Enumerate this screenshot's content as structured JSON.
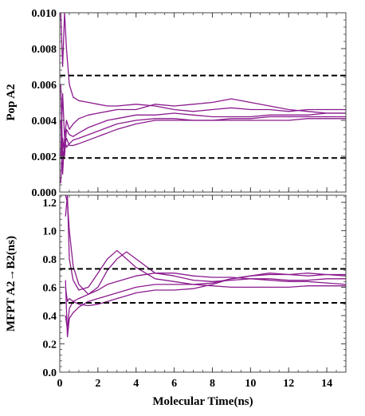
{
  "chart_data": [
    {
      "type": "line",
      "title": "",
      "ylabel": "Pop A2",
      "xlim": [
        0,
        15
      ],
      "ylim": [
        0,
        0.01
      ],
      "xticks": [
        "0",
        "2",
        "4",
        "6",
        "8",
        "10",
        "12",
        "14"
      ],
      "yticks": [
        "0.000",
        "0.002",
        "0.004",
        "0.006",
        "0.008",
        "0.010"
      ],
      "line_color": "#8B1A8E",
      "reference_lines": [
        0.0065,
        0.0019
      ],
      "series": [
        {
          "x": [
            0.05,
            0.15,
            0.25,
            0.35,
            0.5,
            0.7,
            1,
            1.5,
            2,
            2.5,
            3,
            4,
            5,
            6,
            7,
            8,
            9,
            10,
            11,
            12,
            13,
            14,
            15
          ],
          "y": [
            0.01,
            0.007,
            0.01,
            0.008,
            0.006,
            0.0053,
            0.0051,
            0.005,
            0.0049,
            0.0048,
            0.0048,
            0.0049,
            0.0048,
            0.0046,
            0.0045,
            0.0046,
            0.0047,
            0.0046,
            0.0046,
            0.0045,
            0.0046,
            0.0046,
            0.0046
          ]
        },
        {
          "x": [
            0.05,
            0.15,
            0.25,
            0.35,
            0.5,
            0.7,
            1,
            1.5,
            2,
            2.5,
            3,
            4,
            5,
            6,
            7,
            8,
            9,
            10,
            11,
            12,
            13,
            14,
            15
          ],
          "y": [
            0.002,
            0.0055,
            0.003,
            0.004,
            0.0035,
            0.0038,
            0.0041,
            0.0043,
            0.0044,
            0.0045,
            0.0046,
            0.0046,
            0.0049,
            0.0048,
            0.0049,
            0.005,
            0.0052,
            0.005,
            0.0048,
            0.0046,
            0.0045,
            0.0044,
            0.0044
          ]
        },
        {
          "x": [
            0.05,
            0.15,
            0.25,
            0.35,
            0.5,
            0.7,
            1,
            1.5,
            2,
            2.5,
            3,
            4,
            5,
            6,
            7,
            8,
            9,
            10,
            11,
            12,
            13,
            14,
            15
          ],
          "y": [
            0.0005,
            0.003,
            0.002,
            0.0035,
            0.0032,
            0.0031,
            0.0033,
            0.0036,
            0.0038,
            0.004,
            0.0041,
            0.0043,
            0.0043,
            0.0044,
            0.0043,
            0.0042,
            0.0042,
            0.0042,
            0.0043,
            0.0043,
            0.0043,
            0.0044,
            0.0044
          ]
        },
        {
          "x": [
            0.05,
            0.15,
            0.25,
            0.35,
            0.5,
            0.7,
            1,
            1.5,
            2,
            2.5,
            3,
            4,
            5,
            6,
            7,
            8,
            9,
            10,
            11,
            12,
            13,
            14,
            15
          ],
          "y": [
            0.004,
            0.001,
            0.003,
            0.0025,
            0.0027,
            0.0029,
            0.003,
            0.0032,
            0.0034,
            0.0036,
            0.0038,
            0.004,
            0.0041,
            0.0041,
            0.004,
            0.004,
            0.0041,
            0.0041,
            0.0042,
            0.0042,
            0.0042,
            0.0042,
            0.0042
          ]
        },
        {
          "x": [
            0.05,
            0.15,
            0.25,
            0.35,
            0.5,
            0.7,
            1,
            1.5,
            2,
            2.5,
            3,
            4,
            5,
            6,
            7,
            8,
            9,
            10,
            11,
            12,
            13,
            14,
            15
          ],
          "y": [
            0.006,
            0.002,
            0.0025,
            0.003,
            0.0026,
            0.0026,
            0.0027,
            0.0029,
            0.0031,
            0.0033,
            0.0035,
            0.0038,
            0.004,
            0.004,
            0.004,
            0.004,
            0.004,
            0.004,
            0.004,
            0.004,
            0.0041,
            0.0041,
            0.0041
          ]
        }
      ]
    },
    {
      "type": "line",
      "title": "",
      "xlabel": "Molecular Time(ns)",
      "ylabel": "MFPT A2→B2(ns)",
      "xlim": [
        0,
        15
      ],
      "ylim": [
        0,
        1.25
      ],
      "xticks": [
        "0",
        "2",
        "4",
        "6",
        "8",
        "10",
        "12",
        "14"
      ],
      "yticks": [
        "0.0",
        "0.2",
        "0.4",
        "0.6",
        "0.8",
        "1.0",
        "1.2"
      ],
      "line_color": "#8B1A8E",
      "reference_lines": [
        0.73,
        0.49
      ],
      "series": [
        {
          "x": [
            0.3,
            0.4,
            0.5,
            0.7,
            1,
            1.5,
            2,
            2.5,
            3,
            3.5,
            4,
            5,
            6,
            7,
            8,
            9,
            10,
            11,
            12,
            13,
            14,
            15
          ],
          "y": [
            1.25,
            1.2,
            1.0,
            0.75,
            0.62,
            0.55,
            0.6,
            0.72,
            0.8,
            0.85,
            0.8,
            0.7,
            0.68,
            0.65,
            0.64,
            0.65,
            0.66,
            0.66,
            0.65,
            0.65,
            0.66,
            0.66
          ]
        },
        {
          "x": [
            0.3,
            0.4,
            0.5,
            0.7,
            1,
            1.5,
            2,
            2.5,
            3,
            3.5,
            4,
            5,
            6,
            7,
            8,
            9,
            10,
            11,
            12,
            13,
            14,
            15
          ],
          "y": [
            1.1,
            1.25,
            0.8,
            0.65,
            0.58,
            0.6,
            0.7,
            0.8,
            0.86,
            0.8,
            0.74,
            0.66,
            0.64,
            0.62,
            0.63,
            0.66,
            0.68,
            0.69,
            0.69,
            0.7,
            0.69,
            0.68
          ]
        },
        {
          "x": [
            0.3,
            0.4,
            0.5,
            0.7,
            1,
            1.5,
            2,
            2.5,
            3,
            3.5,
            4,
            5,
            6,
            7,
            8,
            9,
            10,
            11,
            12,
            13,
            14,
            15
          ],
          "y": [
            0.4,
            0.3,
            0.45,
            0.5,
            0.52,
            0.55,
            0.58,
            0.62,
            0.64,
            0.66,
            0.68,
            0.7,
            0.7,
            0.68,
            0.67,
            0.67,
            0.66,
            0.65,
            0.64,
            0.64,
            0.63,
            0.62
          ]
        },
        {
          "x": [
            0.3,
            0.4,
            0.5,
            0.7,
            1,
            1.5,
            2,
            2.5,
            3,
            3.5,
            4,
            5,
            6,
            7,
            8,
            9,
            10,
            11,
            12,
            13,
            14,
            15
          ],
          "y": [
            0.65,
            0.25,
            0.38,
            0.42,
            0.46,
            0.5,
            0.52,
            0.54,
            0.56,
            0.58,
            0.6,
            0.62,
            0.62,
            0.62,
            0.61,
            0.6,
            0.6,
            0.6,
            0.6,
            0.61,
            0.61,
            0.61
          ]
        },
        {
          "x": [
            0.3,
            0.4,
            0.5,
            0.7,
            1,
            1.5,
            2,
            2.5,
            3,
            3.5,
            4,
            5,
            6,
            7,
            8,
            9,
            10,
            11,
            12,
            13,
            14,
            15
          ],
          "y": [
            0.6,
            0.5,
            0.52,
            0.5,
            0.48,
            0.47,
            0.48,
            0.5,
            0.52,
            0.54,
            0.56,
            0.58,
            0.58,
            0.59,
            0.62,
            0.66,
            0.68,
            0.7,
            0.69,
            0.68,
            0.69,
            0.69
          ]
        }
      ]
    }
  ]
}
